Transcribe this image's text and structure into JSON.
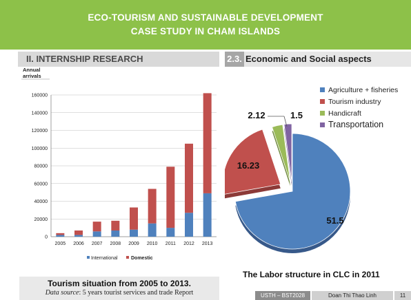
{
  "header": {
    "title_line1": "ECO-TOURISM AND SUSTAINABLE DEVELOPMENT",
    "title_line2": "CASE STUDY IN CHAM ISLANDS"
  },
  "left_section": {
    "title": "II. INTERNSHIP RESEARCH"
  },
  "right_section": {
    "number": "2.3.",
    "title": "Economic and Social aspects"
  },
  "colors": {
    "header_green": "#8dc149",
    "international": "#4f81bd",
    "domestic": "#c0504d",
    "agriculture": "#4f81bd",
    "tourism": "#c0504d",
    "handicraft": "#9bbb59",
    "transportation": "#8064a2"
  },
  "chart_data": [
    {
      "type": "bar",
      "stacked": true,
      "ylabel": "Annual arrivals",
      "ylabel_line1": "Annual",
      "ylabel_line2": "arrivals",
      "ylim": [
        0,
        160000
      ],
      "yticks": [
        0,
        20000,
        40000,
        60000,
        80000,
        100000,
        120000,
        140000,
        160000
      ],
      "grid": true,
      "legend": "bottom",
      "categories": [
        "2005",
        "2006",
        "2007",
        "2008",
        "2009",
        "2010",
        "2011",
        "2012",
        "2013"
      ],
      "series": [
        {
          "name": "International",
          "values": [
            2000,
            2000,
            6000,
            7000,
            8000,
            15000,
            10000,
            27000,
            49000
          ]
        },
        {
          "name": "Domestic",
          "values": [
            2000,
            5000,
            11000,
            11000,
            25000,
            39000,
            69000,
            78000,
            113000
          ]
        }
      ],
      "caption_title": "Tourism situation from 2005 to 2013.",
      "caption_source_label": "Data source",
      "caption_source_text": ": 5 years tourist services and trade Report"
    },
    {
      "type": "pie",
      "title": "The Labor structure in CLC in 2011",
      "legend": "top-right",
      "slices": [
        {
          "name": "Agriculture + fisheries",
          "value": 51.5,
          "label": "51.5"
        },
        {
          "name": "Tourism industry",
          "value": 16.23,
          "label": "16.23"
        },
        {
          "name": "Handicraft",
          "value": 2.12,
          "label": "2.12"
        },
        {
          "name": "Transportation",
          "value": 1.5,
          "label": "1.5"
        }
      ]
    }
  ],
  "footer": {
    "course": "USTH – BST2028",
    "author": "Doan Thi Thao Linh",
    "page": "11"
  }
}
